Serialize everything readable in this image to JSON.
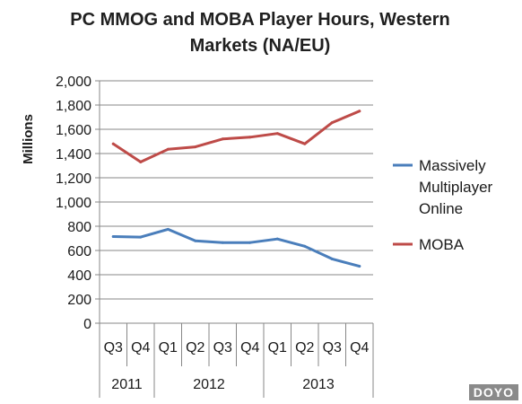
{
  "chart_data": {
    "type": "line",
    "title": "PC MMOG and MOBA Player Hours, Western Markets (NA/EU)",
    "ylabel": "Millions",
    "xlabel": "",
    "ylim": [
      0,
      2000
    ],
    "yticks": [
      "0",
      "200",
      "400",
      "600",
      "800",
      "1,000",
      "1,200",
      "1,400",
      "1,600",
      "1,800",
      "2,000"
    ],
    "ytick_values": [
      0,
      200,
      400,
      600,
      800,
      1000,
      1200,
      1400,
      1600,
      1800,
      2000
    ],
    "categories": [
      "Q3",
      "Q4",
      "Q1",
      "Q2",
      "Q3",
      "Q4",
      "Q1",
      "Q2",
      "Q3",
      "Q4"
    ],
    "year_groups": [
      {
        "label": "2011",
        "count": 2
      },
      {
        "label": "2012",
        "count": 4
      },
      {
        "label": "2013",
        "count": 4
      }
    ],
    "grid": true,
    "legend_position": "right",
    "series": [
      {
        "name": "Massively Multiplayer Online",
        "legend_lines": [
          "Massively",
          "Multiplayer",
          "Online"
        ],
        "color": "#4a7ebb",
        "values": [
          715,
          710,
          775,
          680,
          665,
          665,
          695,
          635,
          530,
          470
        ]
      },
      {
        "name": "MOBA",
        "legend_lines": [
          "MOBA"
        ],
        "color": "#be4b48",
        "values": [
          1480,
          1330,
          1435,
          1455,
          1520,
          1535,
          1565,
          1480,
          1655,
          1750
        ]
      }
    ]
  },
  "watermark": "DOYO"
}
